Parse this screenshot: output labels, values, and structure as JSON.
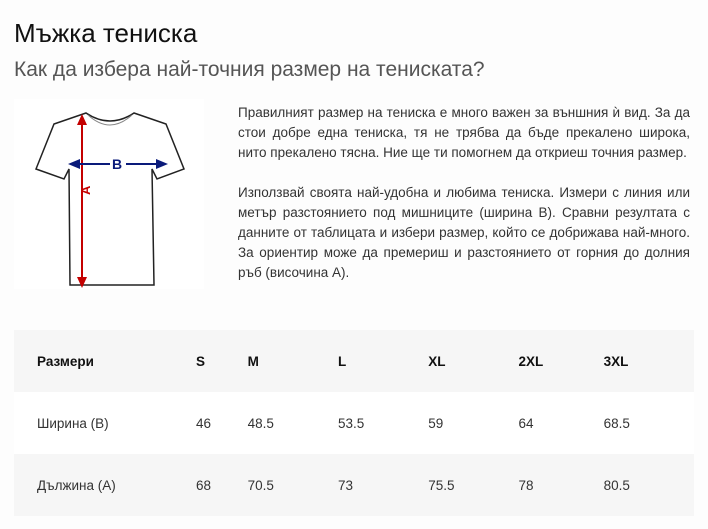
{
  "title": "Мъжка тениска",
  "subtitle": "Как да избера най-точния размер на тениската?",
  "image": {
    "labels": {
      "width": "B",
      "length": "A"
    },
    "colors": {
      "width_arrow": "#0a1a7a",
      "length_arrow": "#c40000"
    }
  },
  "paragraphs": [
    "Правилният размер на тениска е много важен за външния ѝ вид. За да стои добре една тениска, тя не трябва да бъде прекалено широка, нито прекалено тясна. Ние ще ти помогнем да откриеш точния размер.",
    "Използвай своята най-удобна и любима тениска. Измери с линия или метър разстоянието под мишниците (ширина B). Сравни резултата с данните от таблицата и избери размер, който се добрижава най-много. За ориентир може да премериш и разстоянието от горния до долния ръб (височина А)."
  ],
  "table": {
    "header": [
      "Размери",
      "S",
      "M",
      "L",
      "XL",
      "2XL",
      "3XL"
    ],
    "rows": [
      [
        "Ширина (B)",
        "46",
        "48.5",
        "53.5",
        "59",
        "64",
        "68.5"
      ],
      [
        "Дължина (А)",
        "68",
        "70.5",
        "73",
        "75.5",
        "78",
        "80.5"
      ]
    ]
  }
}
